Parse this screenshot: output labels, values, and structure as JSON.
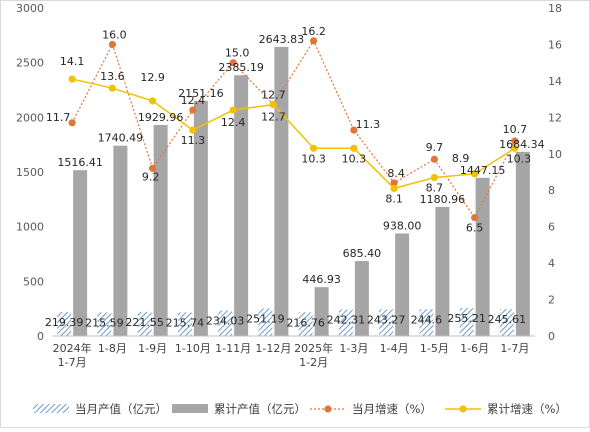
{
  "chart_data": {
    "type": "bar",
    "categories": [
      [
        "2024年",
        "1-7月"
      ],
      [
        "1-8月"
      ],
      [
        "1-9月"
      ],
      [
        "1-10月"
      ],
      [
        "1-11月"
      ],
      [
        "1-12月"
      ],
      [
        "2025年",
        "1-2月"
      ],
      [
        "1-3月"
      ],
      [
        "1-4月"
      ],
      [
        "1-5月"
      ],
      [
        "1-6月"
      ],
      [
        "1-7月"
      ]
    ],
    "series": [
      {
        "name": "当月产值（亿元）",
        "kind": "bar",
        "axis": "left",
        "pattern": "hatch",
        "color": "#7ea6d1",
        "values": [
          219.39,
          215.59,
          221.55,
          215.74,
          234.03,
          251.19,
          216.76,
          242.31,
          243.27,
          244.6,
          255.21,
          245.61
        ],
        "labels": [
          "219.39",
          "215.59",
          "221.55",
          "215.74",
          "234.03",
          "251.19",
          "216.76",
          "242.31",
          "243.27",
          "244.6",
          "255.21",
          "245.61"
        ]
      },
      {
        "name": "累计产值（亿元）",
        "kind": "bar",
        "axis": "left",
        "color": "#a6a6a6",
        "values": [
          1516.41,
          1740.49,
          1929.96,
          2151.16,
          2385.19,
          2643.83,
          446.93,
          685.4,
          938.0,
          1180.96,
          1447.15,
          1684.34
        ],
        "labels": [
          "1516.41",
          "1740.49",
          "1929.96",
          "2151.16",
          "2385.19",
          "2643.83",
          "446.93",
          "685.40",
          "938.00",
          "1180.96",
          "1447.15",
          "1684.34"
        ]
      },
      {
        "name": "当月增速（%）",
        "kind": "line",
        "axis": "right",
        "dashed": true,
        "color": "#e0763a",
        "values": [
          11.7,
          16.0,
          9.2,
          12.4,
          15.0,
          12.7,
          16.2,
          11.3,
          8.4,
          9.7,
          6.5,
          10.7
        ],
        "labels": [
          "11.7",
          "16.0",
          "9.2",
          "12.4",
          "15.0",
          "12.7",
          "16.2",
          "11.3",
          "8.4",
          "9.7",
          "6.5",
          "10.7"
        ]
      },
      {
        "name": "累计增速（%）",
        "kind": "line",
        "axis": "right",
        "dashed": false,
        "color": "#f2c200",
        "values": [
          14.1,
          13.6,
          12.9,
          11.3,
          12.4,
          12.7,
          10.3,
          10.3,
          8.1,
          8.7,
          8.9,
          10.3
        ],
        "labels": [
          "14.1",
          "13.6",
          "12.9",
          "11.3",
          "12.4",
          "12.7",
          "10.3",
          "10.3",
          "8.1",
          "8.7",
          "8.9",
          "10.3"
        ]
      }
    ],
    "y_left": {
      "range": [
        0,
        3000
      ],
      "ticks": [
        "0",
        "500",
        "1000",
        "1500",
        "2000",
        "2500",
        "3000"
      ]
    },
    "y_right": {
      "range": [
        0,
        18
      ],
      "ticks": [
        "0",
        "2",
        "4",
        "6",
        "8",
        "10",
        "12",
        "14",
        "16",
        "18"
      ]
    },
    "grid": false,
    "legend_position": "bottom"
  }
}
